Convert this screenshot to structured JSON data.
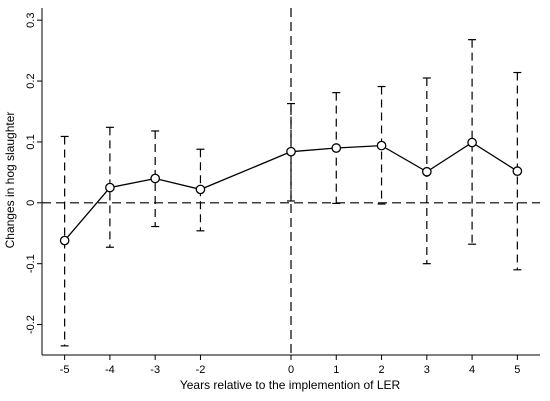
{
  "chart_data": {
    "type": "line",
    "xlabel": "Years relative to the implemention of LER",
    "ylabel": "Changes in hog slaughter",
    "x_ticks": [
      -5,
      -4,
      -3,
      -2,
      0,
      1,
      2,
      3,
      4,
      5
    ],
    "y_ticks": [
      -0.2,
      -0.1,
      0,
      0.1,
      0.2,
      0.3
    ],
    "y_tick_labels": [
      "-0.2",
      "-0.1",
      "0",
      "0.1",
      "0.2",
      "0.3"
    ],
    "xlim": [
      -5.5,
      5.5
    ],
    "ylim": [
      -0.25,
      0.32
    ],
    "grid": false,
    "reference_lines": {
      "horizontal": 0,
      "vertical": 0,
      "style": "dashed"
    },
    "series": [
      {
        "x": [
          -5,
          -4,
          -3,
          -2,
          0,
          1,
          2,
          3,
          4,
          5
        ],
        "y": [
          -0.062,
          0.025,
          0.04,
          0.022,
          0.084,
          0.09,
          0.094,
          0.051,
          0.099,
          0.052
        ],
        "ci_low": [
          -0.235,
          -0.073,
          -0.039,
          -0.046,
          0.003,
          -0.001,
          -0.002,
          -0.1,
          -0.068,
          -0.11
        ],
        "ci_high": [
          0.109,
          0.124,
          0.118,
          0.088,
          0.163,
          0.181,
          0.191,
          0.205,
          0.268,
          0.214
        ]
      }
    ],
    "colors": {
      "line": "#000000",
      "axis": "#000000"
    }
  }
}
